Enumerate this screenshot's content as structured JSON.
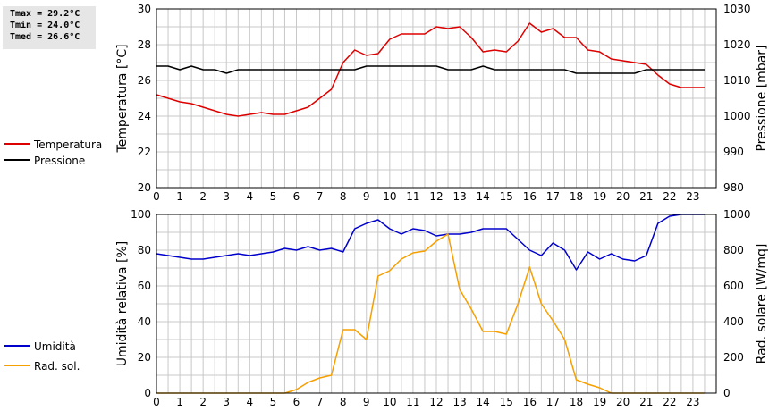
{
  "stats": {
    "tmax": "Tmax = 29.2°C",
    "tmin": "Tmin = 24.0°C",
    "tmed": "Tmed = 26.6°C"
  },
  "colors": {
    "temperature": "#dd0000",
    "pressure": "#000000",
    "humidity": "#0000cc",
    "radiation": "#f5a000",
    "grid": "#c8c8c8"
  },
  "chart_data": [
    {
      "type": "line",
      "title": "",
      "xlabel": "",
      "ylabel": "Temperatura [°C]",
      "y2label": "Pressione [mbar]",
      "xlim": [
        0,
        24
      ],
      "ylim": [
        20,
        30
      ],
      "y2lim": [
        980,
        1030
      ],
      "grid": true,
      "legend_position": "left",
      "x_ticks": [
        "0",
        "1",
        "2",
        "3",
        "4",
        "5",
        "6",
        "7",
        "8",
        "9",
        "10",
        "11",
        "12",
        "13",
        "14",
        "15",
        "16",
        "17",
        "18",
        "19",
        "20",
        "21",
        "22",
        "23"
      ],
      "y_ticks": [
        "20",
        "22",
        "24",
        "26",
        "28",
        "30"
      ],
      "y2_ticks": [
        "980",
        "990",
        "1000",
        "1010",
        "1020",
        "1030"
      ],
      "x": [
        0,
        0.5,
        1,
        1.5,
        2,
        2.5,
        3,
        3.5,
        4,
        4.5,
        5,
        5.5,
        6,
        6.5,
        7,
        7.5,
        8,
        8.5,
        9,
        9.5,
        10,
        10.5,
        11,
        11.5,
        12,
        12.5,
        13,
        13.5,
        14,
        14.5,
        15,
        15.5,
        16,
        16.5,
        17,
        17.5,
        18,
        18.5,
        19,
        19.5,
        20,
        20.5,
        21,
        21.5,
        22,
        22.5,
        23,
        23.5
      ],
      "series": [
        {
          "name": "Temperatura",
          "axis": "left",
          "values": [
            25.2,
            25.0,
            24.8,
            24.7,
            24.5,
            24.3,
            24.1,
            24.0,
            24.1,
            24.2,
            24.1,
            24.1,
            24.3,
            24.5,
            25.0,
            25.5,
            27.0,
            27.7,
            27.4,
            27.5,
            28.3,
            28.6,
            28.6,
            28.6,
            29.0,
            28.9,
            29.0,
            28.4,
            27.6,
            27.7,
            27.6,
            28.2,
            29.2,
            28.7,
            28.9,
            28.4,
            28.4,
            27.7,
            27.6,
            27.2,
            27.1,
            27.0,
            26.9,
            26.3,
            25.8,
            25.6,
            25.6,
            25.6
          ]
        },
        {
          "name": "Pressione",
          "axis": "right",
          "values": [
            1014,
            1014,
            1013,
            1014,
            1013,
            1013,
            1012,
            1013,
            1013,
            1013,
            1013,
            1013,
            1013,
            1013,
            1013,
            1013,
            1013,
            1013,
            1014,
            1014,
            1014,
            1014,
            1014,
            1014,
            1014,
            1013,
            1013,
            1013,
            1014,
            1013,
            1013,
            1013,
            1013,
            1013,
            1013,
            1013,
            1012,
            1012,
            1012,
            1012,
            1012,
            1012,
            1013,
            1013,
            1013,
            1013,
            1013,
            1013
          ]
        }
      ]
    },
    {
      "type": "line",
      "title": "",
      "xlabel": "",
      "ylabel": "Umidità relativa [%]",
      "y2label": "Rad. solare [W/mq]",
      "xlim": [
        0,
        24
      ],
      "ylim": [
        0,
        100
      ],
      "y2lim": [
        0,
        1000
      ],
      "grid": true,
      "legend_position": "left",
      "x_ticks": [
        "0",
        "1",
        "2",
        "3",
        "4",
        "5",
        "6",
        "7",
        "8",
        "9",
        "10",
        "11",
        "12",
        "13",
        "14",
        "15",
        "16",
        "17",
        "18",
        "19",
        "20",
        "21",
        "22",
        "23"
      ],
      "y_ticks": [
        "0",
        "20",
        "40",
        "60",
        "80",
        "100"
      ],
      "y2_ticks": [
        "0",
        "200",
        "400",
        "600",
        "800",
        "1000"
      ],
      "x": [
        0,
        0.5,
        1,
        1.5,
        2,
        2.5,
        3,
        3.5,
        4,
        4.5,
        5,
        5.5,
        6,
        6.5,
        7,
        7.5,
        8,
        8.5,
        9,
        9.5,
        10,
        10.5,
        11,
        11.5,
        12,
        12.5,
        13,
        13.5,
        14,
        14.5,
        15,
        15.5,
        16,
        16.5,
        17,
        17.5,
        18,
        18.5,
        19,
        19.5,
        20,
        20.5,
        21,
        21.5,
        22,
        22.5,
        23,
        23.5
      ],
      "series": [
        {
          "name": "Umidità",
          "axis": "left",
          "values": [
            78,
            77,
            76,
            75,
            75,
            76,
            77,
            78,
            77,
            78,
            79,
            81,
            80,
            82,
            80,
            81,
            79,
            92,
            95,
            97,
            92,
            89,
            92,
            91,
            88,
            89,
            89,
            90,
            92,
            92,
            92,
            86,
            80,
            77,
            84,
            80,
            69,
            79,
            75,
            78,
            75,
            74,
            77,
            95,
            99,
            100,
            100,
            100
          ]
        },
        {
          "name": "Rad. sol.",
          "axis": "right",
          "values": [
            0,
            0,
            0,
            0,
            0,
            0,
            0,
            0,
            0,
            0,
            0,
            0,
            20,
            60,
            85,
            100,
            355,
            355,
            300,
            655,
            685,
            750,
            785,
            795,
            850,
            890,
            580,
            470,
            345,
            345,
            330,
            500,
            705,
            500,
            405,
            300,
            75,
            50,
            30,
            0,
            0,
            0,
            0,
            0,
            0,
            0,
            0,
            0
          ]
        }
      ]
    }
  ]
}
